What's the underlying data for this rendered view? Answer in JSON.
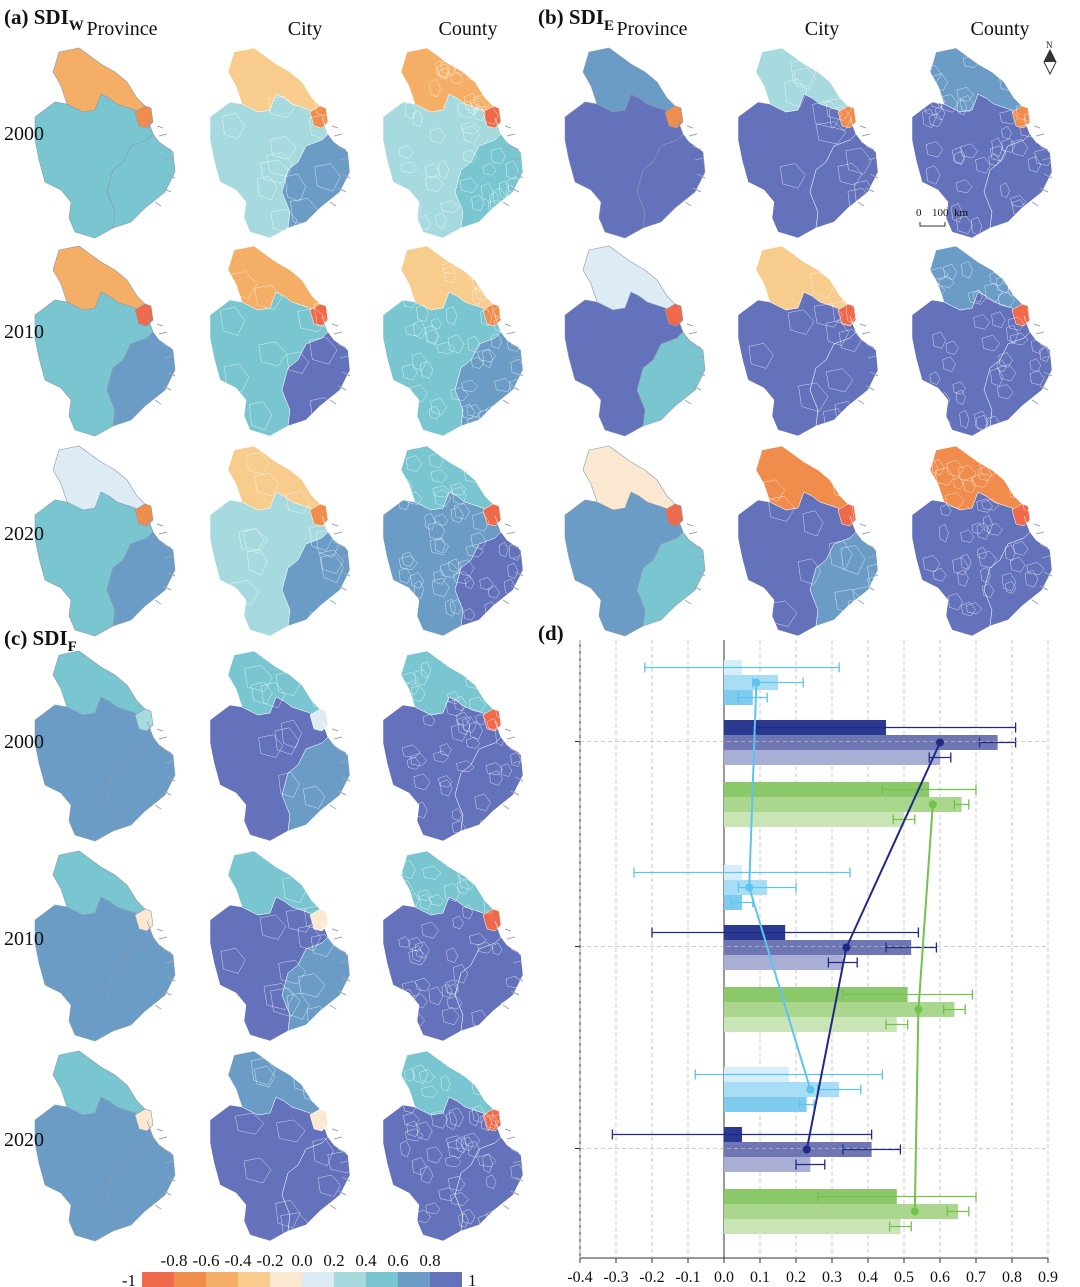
{
  "panels": {
    "a": {
      "label": "(a) SDI",
      "sub": "W"
    },
    "b": {
      "label": "(b) SDI",
      "sub": "E"
    },
    "c": {
      "label": "(c) SDI",
      "sub": "F"
    },
    "d": {
      "label": "(d)"
    }
  },
  "columns": [
    "Province",
    "City",
    "County"
  ],
  "years": [
    "2000",
    "2010",
    "2020"
  ],
  "scale_bar": {
    "zero": "0",
    "dist": "100",
    "unit": "km"
  },
  "north_arrow": "N",
  "legend": {
    "ticks": [
      "-1",
      "-0.8",
      "-0.6",
      "-0.4",
      "-0.2",
      "0.0",
      "0.2",
      "0.4",
      "0.6",
      "0.8",
      "1"
    ],
    "colors": [
      "#ef6a4a",
      "#f08c4c",
      "#f5ae66",
      "#f8cc8c",
      "#fbe8d0",
      "#dcebf4",
      "#a6dade",
      "#79c6d0",
      "#6b9cc6",
      "#6472bb"
    ]
  },
  "map_colors": {
    "a": [
      [
        "#79c6d0",
        "#f5ae66",
        "#f08c4c",
        "#79c6d0"
      ],
      [
        "#a6dade",
        "#f8cc8c",
        "#f08c4c",
        "#6b9cc6"
      ],
      [
        "#a6dade",
        "#f5ae66",
        "#ef6a4a",
        "#79c6d0"
      ],
      [
        "#79c6d0",
        "#f5ae66",
        "#ef6a4a",
        "#6b9cc6"
      ],
      [
        "#79c6d0",
        "#f5ae66",
        "#ef6a4a",
        "#6472bb"
      ],
      [
        "#79c6d0",
        "#f8cc8c",
        "#f08c4c",
        "#6b9cc6"
      ],
      [
        "#79c6d0",
        "#dcebf4",
        "#f08c4c",
        "#6b9cc6"
      ],
      [
        "#a6dade",
        "#f8cc8c",
        "#f08c4c",
        "#6b9cc6"
      ],
      [
        "#6b9cc6",
        "#79c6d0",
        "#ef6a4a",
        "#6472bb"
      ]
    ],
    "b": [
      [
        "#6472bb",
        "#6b9cc6",
        "#f08c4c",
        "#6472bb"
      ],
      [
        "#6472bb",
        "#a6dade",
        "#f08c4c",
        "#6472bb"
      ],
      [
        "#6472bb",
        "#6b9cc6",
        "#f08c4c",
        "#6472bb"
      ],
      [
        "#6472bb",
        "#dcebf4",
        "#ef6a4a",
        "#79c6d0"
      ],
      [
        "#6472bb",
        "#f8cc8c",
        "#ef6a4a",
        "#6472bb"
      ],
      [
        "#6472bb",
        "#6b9cc6",
        "#ef6a4a",
        "#6472bb"
      ],
      [
        "#6b9cc6",
        "#fbe8d0",
        "#ef6a4a",
        "#79c6d0"
      ],
      [
        "#6472bb",
        "#f08c4c",
        "#ef6a4a",
        "#6b9cc6"
      ],
      [
        "#6472bb",
        "#f08c4c",
        "#ef6a4a",
        "#6472bb"
      ]
    ],
    "c": [
      [
        "#6b9cc6",
        "#79c6d0",
        "#a6dade",
        "#6b9cc6"
      ],
      [
        "#6472bb",
        "#79c6d0",
        "#dcebf4",
        "#6b9cc6"
      ],
      [
        "#6472bb",
        "#79c6d0",
        "#ef6a4a",
        "#6472bb"
      ],
      [
        "#6b9cc6",
        "#79c6d0",
        "#fbe8d0",
        "#6b9cc6"
      ],
      [
        "#6472bb",
        "#79c6d0",
        "#fbe8d0",
        "#6b9cc6"
      ],
      [
        "#6472bb",
        "#79c6d0",
        "#ef6a4a",
        "#6472bb"
      ],
      [
        "#6b9cc6",
        "#79c6d0",
        "#fbe8d0",
        "#6b9cc6"
      ],
      [
        "#6472bb",
        "#6b9cc6",
        "#fbe8d0",
        "#6472bb"
      ],
      [
        "#6472bb",
        "#79c6d0",
        "#ef6a4a",
        "#6472bb"
      ]
    ]
  },
  "chart_data": {
    "type": "bar",
    "orientation": "horizontal",
    "title": "(d)",
    "xlim": [
      -0.4,
      0.9
    ],
    "xticks": [
      "-0.4",
      "-0.3",
      "-0.2",
      "-0.1",
      "0.0",
      "0.1",
      "0.2",
      "0.3",
      "0.4",
      "0.5",
      "0.6",
      "0.7",
      "0.8",
      "0.9"
    ],
    "grid": true,
    "years": [
      "2000",
      "2010",
      "2020"
    ],
    "level_order": [
      "Province",
      "City",
      "County"
    ],
    "series": [
      {
        "name": "SDI_W",
        "colors": [
          "#d4eefa",
          "#a8def5",
          "#7fcbee"
        ],
        "line_color": "#5cc4ee",
        "values": [
          [
            0.05,
            0.15,
            0.08
          ],
          [
            0.05,
            0.12,
            0.05
          ],
          [
            0.18,
            0.32,
            0.23
          ]
        ],
        "errors": [
          [
            0.27,
            0.07,
            0.04
          ],
          [
            0.3,
            0.08,
            0.03
          ],
          [
            0.26,
            0.06,
            0.02
          ]
        ],
        "means": [
          0.09,
          0.07,
          0.24
        ]
      },
      {
        "name": "SDI_E",
        "colors": [
          "#2b3990",
          "#6e76b4",
          "#a8aed4"
        ],
        "line_color": "#1e2a86",
        "values": [
          [
            0.45,
            0.76,
            0.6
          ],
          [
            0.17,
            0.52,
            0.33
          ],
          [
            0.05,
            0.41,
            0.24
          ]
        ],
        "errors": [
          [
            0.36,
            0.05,
            0.03
          ],
          [
            0.37,
            0.07,
            0.04
          ],
          [
            0.36,
            0.08,
            0.04
          ]
        ],
        "means": [
          0.6,
          0.34,
          0.23
        ]
      },
      {
        "name": "SDI_F",
        "colors": [
          "#8ac86a",
          "#aad68e",
          "#c9e4b5"
        ],
        "line_color": "#72c24c",
        "values": [
          [
            0.57,
            0.66,
            0.5
          ],
          [
            0.51,
            0.64,
            0.48
          ],
          [
            0.48,
            0.65,
            0.49
          ]
        ],
        "errors": [
          [
            0.13,
            0.02,
            0.03
          ],
          [
            0.18,
            0.03,
            0.03
          ],
          [
            0.22,
            0.03,
            0.03
          ]
        ],
        "means": [
          0.58,
          0.54,
          0.53
        ]
      }
    ]
  }
}
